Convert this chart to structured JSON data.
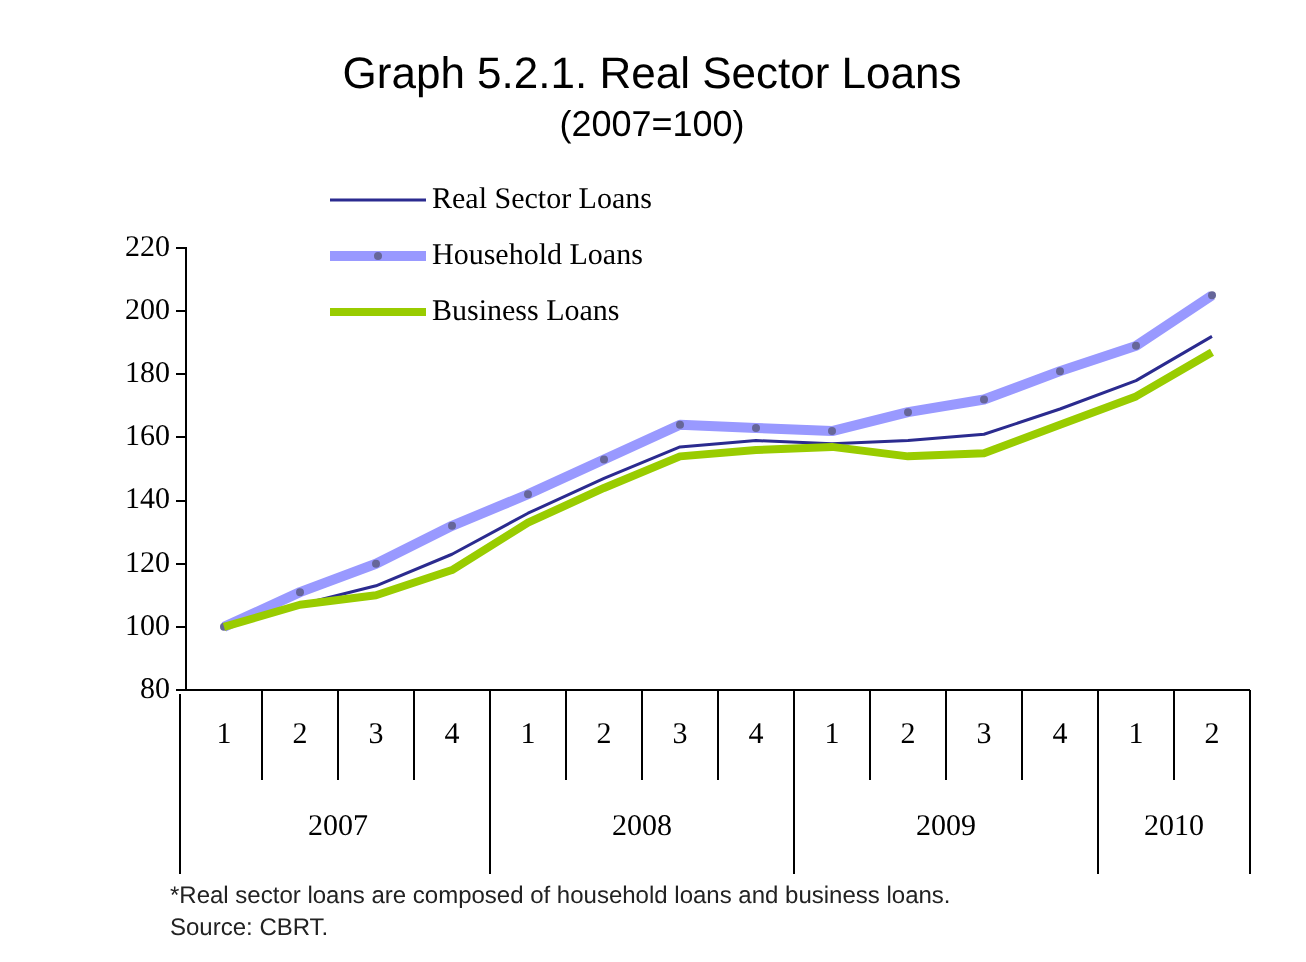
{
  "chart_data": {
    "type": "line",
    "title": "Graph 5.2.1. Real Sector Loans",
    "subtitle": "(2007=100)",
    "categories": [
      "1",
      "2",
      "3",
      "4",
      "1",
      "2",
      "3",
      "4",
      "1",
      "2",
      "3",
      "4",
      "1",
      "2"
    ],
    "series": [
      {
        "name": "Real Sector Loans",
        "color": "#2b2b8f",
        "values": [
          100,
          107,
          113,
          123,
          136,
          147,
          157,
          159,
          158,
          159,
          161,
          169,
          178,
          192
        ]
      },
      {
        "name": "Household Loans",
        "color": "#9999ff",
        "marker": "circle",
        "values": [
          100,
          111,
          120,
          132,
          142,
          153,
          164,
          163,
          162,
          168,
          172,
          181,
          189,
          205
        ]
      },
      {
        "name": "Business Loans",
        "color": "#99cc00",
        "values": [
          100,
          107,
          110,
          118,
          133,
          144,
          154,
          156,
          157,
          154,
          155,
          164,
          173,
          187
        ]
      }
    ],
    "ylim": [
      80,
      220
    ],
    "yticks": [
      80,
      100,
      120,
      140,
      160,
      180,
      200,
      220
    ],
    "grid": false,
    "legend": "top",
    "annotations": [
      "2007",
      "2008",
      "2009",
      "2010",
      "*Real sector loans are composed of household loans and business loans.",
      "Source: CBRT."
    ]
  }
}
